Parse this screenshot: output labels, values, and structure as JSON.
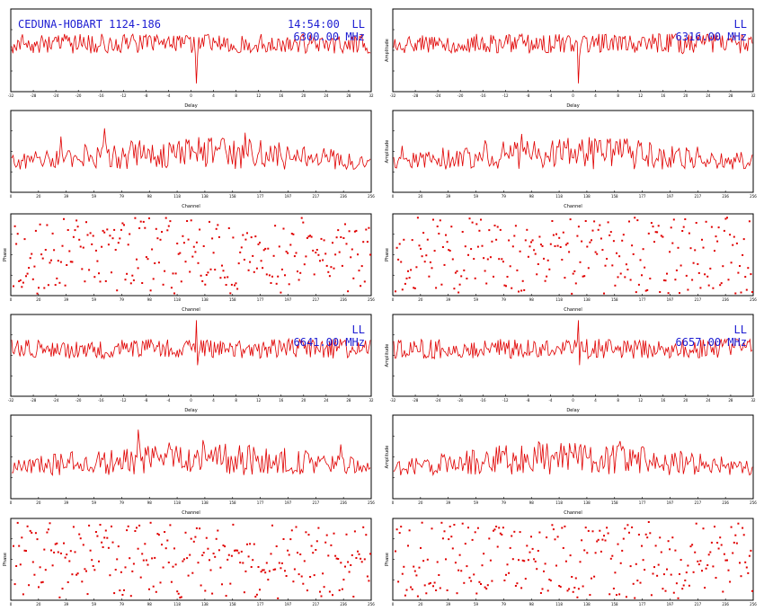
{
  "colors": {
    "trace": "#e00000",
    "annotation": "#1c1cd2",
    "frame": "#000000",
    "background": "#ffffff"
  },
  "header": {
    "baseline": "CEDUNA-HOBART 1124-186",
    "time": "14:54:00"
  },
  "chart_data": [
    {
      "id": "g1-delay",
      "type": "line",
      "xlabel": "Delay",
      "ylabel": "",
      "xlim": [
        -32,
        32
      ],
      "x_tick_labels": [
        "-32",
        "-28",
        "-24",
        "-20",
        "-16",
        "-12",
        "-8",
        "-4",
        "0",
        "4",
        "8",
        "12",
        "16",
        "20",
        "24",
        "28",
        "32"
      ],
      "annotations": [
        "LL",
        "6300.00 MHz"
      ],
      "peak_delay": 1,
      "peak_direction": "down"
    },
    {
      "id": "g2-delay",
      "type": "line",
      "xlabel": "Delay",
      "ylabel": "Amplitude",
      "xlim": [
        -32,
        32
      ],
      "x_tick_labels": [
        "-32",
        "-28",
        "-24",
        "-20",
        "-16",
        "-12",
        "-8",
        "-4",
        "0",
        "4",
        "8",
        "12",
        "16",
        "20",
        "24",
        "28",
        "32"
      ],
      "annotations": [
        "LL",
        "6316.00 MHz"
      ],
      "peak_delay": 1,
      "peak_direction": "down"
    },
    {
      "id": "g1-amp",
      "type": "line",
      "xlabel": "Channel",
      "ylabel": "",
      "xlim": [
        0,
        256
      ]
    },
    {
      "id": "g2-amp",
      "type": "line",
      "xlabel": "Channel",
      "ylabel": "Amplitude",
      "xlim": [
        0,
        256
      ]
    },
    {
      "id": "g1-phase",
      "type": "scatter",
      "xlabel": "Channel",
      "ylabel": "Phase",
      "xlim": [
        0,
        256
      ],
      "ylim": [
        -180,
        180
      ]
    },
    {
      "id": "g2-phase",
      "type": "scatter",
      "xlabel": "Channel",
      "ylabel": "Phase",
      "xlim": [
        0,
        256
      ],
      "ylim": [
        -180,
        180
      ]
    },
    {
      "id": "g3-delay",
      "type": "line",
      "xlabel": "Delay",
      "ylabel": "",
      "xlim": [
        -32,
        32
      ],
      "x_tick_labels": [
        "-32",
        "-28",
        "-24",
        "-20",
        "-16",
        "-12",
        "-8",
        "-4",
        "0",
        "4",
        "8",
        "12",
        "16",
        "20",
        "24",
        "28",
        "32"
      ],
      "annotations": [
        "LL",
        "6641.00 MHz"
      ],
      "peak_delay": 1,
      "peak_direction": "up"
    },
    {
      "id": "g4-delay",
      "type": "line",
      "xlabel": "Delay",
      "ylabel": "Amplitude",
      "xlim": [
        -32,
        32
      ],
      "x_tick_labels": [
        "-32",
        "-28",
        "-24",
        "-20",
        "-16",
        "-12",
        "-8",
        "-4",
        "0",
        "4",
        "8",
        "12",
        "16",
        "20",
        "24",
        "28",
        "32"
      ],
      "annotations": [
        "LL",
        "6657.00 MHz"
      ],
      "peak_delay": 1,
      "peak_direction": "up"
    },
    {
      "id": "g3-amp",
      "type": "line",
      "xlabel": "Channel",
      "ylabel": "",
      "xlim": [
        0,
        256
      ]
    },
    {
      "id": "g4-amp",
      "type": "line",
      "xlabel": "Channel",
      "ylabel": "Amplitude",
      "xlim": [
        0,
        256
      ]
    },
    {
      "id": "g3-phase",
      "type": "scatter",
      "xlabel": "Channel",
      "ylabel": "Phase",
      "xlim": [
        0,
        256
      ],
      "ylim": [
        -180,
        180
      ]
    },
    {
      "id": "g4-phase",
      "type": "scatter",
      "xlabel": "Channel",
      "ylabel": "Phase",
      "xlim": [
        0,
        256
      ],
      "ylim": [
        -180,
        180
      ]
    }
  ]
}
